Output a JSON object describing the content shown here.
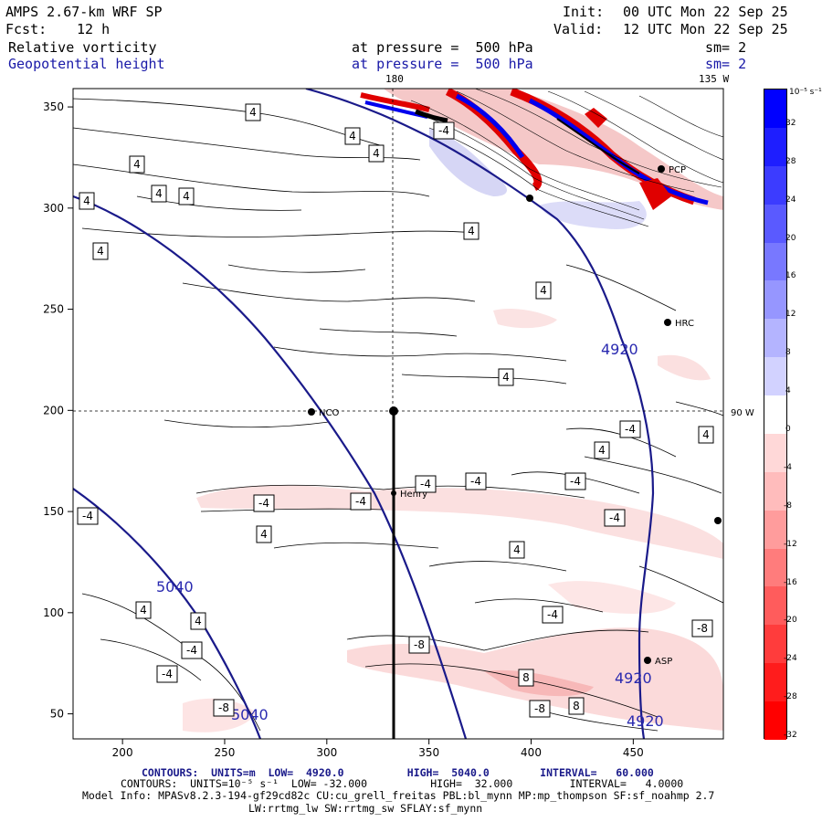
{
  "header": {
    "model_title": "AMPS 2.67-km WRF SP",
    "forecast_label": "Fcst:",
    "forecast_hours": "12 h",
    "init_label": "Init:",
    "init_time": "00 UTC Mon 22 Sep 25",
    "valid_label": "Valid:",
    "valid_time": "12 UTC Mon 22 Sep 25",
    "field1_name": "Relative vorticity",
    "field1_level": "at pressure =  500 hPa",
    "field1_smooth": "sm= 2",
    "field2_name": "Geopotential height",
    "field2_level": "at pressure =  500 hPa",
    "field2_smooth": "sm= 2"
  },
  "map": {
    "meridian_180": "180",
    "meridian_135w": "135 W",
    "meridian_90w": "90 W",
    "x_ticks": [
      "200",
      "250",
      "300",
      "350",
      "400",
      "450"
    ],
    "y_ticks": [
      "350",
      "300",
      "250",
      "200",
      "150",
      "100",
      "50"
    ],
    "stations": [
      "NCO",
      "Henry",
      "HRC",
      "ASP",
      "PCP"
    ],
    "height_contours": [
      "5040",
      "5040",
      "4920",
      "4920",
      "4920"
    ],
    "vorticity_boxes": [
      "4",
      "4",
      "4",
      "4",
      "4",
      "4",
      "4",
      "4",
      "4",
      "4",
      "4",
      "4",
      "4",
      "4",
      "4",
      "4",
      "4",
      "-4",
      "-4",
      "-4",
      "-4",
      "-4",
      "-4",
      "-4",
      "-4",
      "-4",
      "-4",
      "-4",
      "-4",
      "-8",
      "-8",
      "-8",
      "-8",
      "8",
      "8"
    ]
  },
  "colorbar": {
    "unit_label": "10⁻⁵ s⁻¹",
    "labels": [
      "32",
      "28",
      "24",
      "20",
      "16",
      "12",
      "8",
      "4",
      "0",
      "-4",
      "-8",
      "-12",
      "-16",
      "-20",
      "-24",
      "-28",
      "-32"
    ],
    "colors": [
      "#0000ff",
      "#1e1eff",
      "#3c3cff",
      "#5a5aff",
      "#7878ff",
      "#9696ff",
      "#b4b4ff",
      "#d2d2ff",
      "#ffffff",
      "#ffd8d8",
      "#ffbcbc",
      "#ff9c9c",
      "#ff7c7c",
      "#ff5c5c",
      "#ff3c3c",
      "#ff1c1c",
      "#ff0000"
    ]
  },
  "footer": {
    "contours1": "CONTOURS:  UNITS=m  LOW=  4920.0          HIGH=  5040.0        INTERVAL=   60.000",
    "contours2": "CONTOURS:  UNITS=10⁻⁵ s⁻¹  LOW= -32.000          HIGH=  32.000         INTERVAL=   4.0000",
    "model_info": "Model Info: MPASv8.2.3-194-gf29cd82c CU:cu_grell_freitas PBL:bl_mynn MP:mp_thompson SF:sf_noahmp 2.7",
    "model_info2": "LW:rrtmg_lw SW:rrtmg_sw SFLAY:sf_mynn"
  }
}
